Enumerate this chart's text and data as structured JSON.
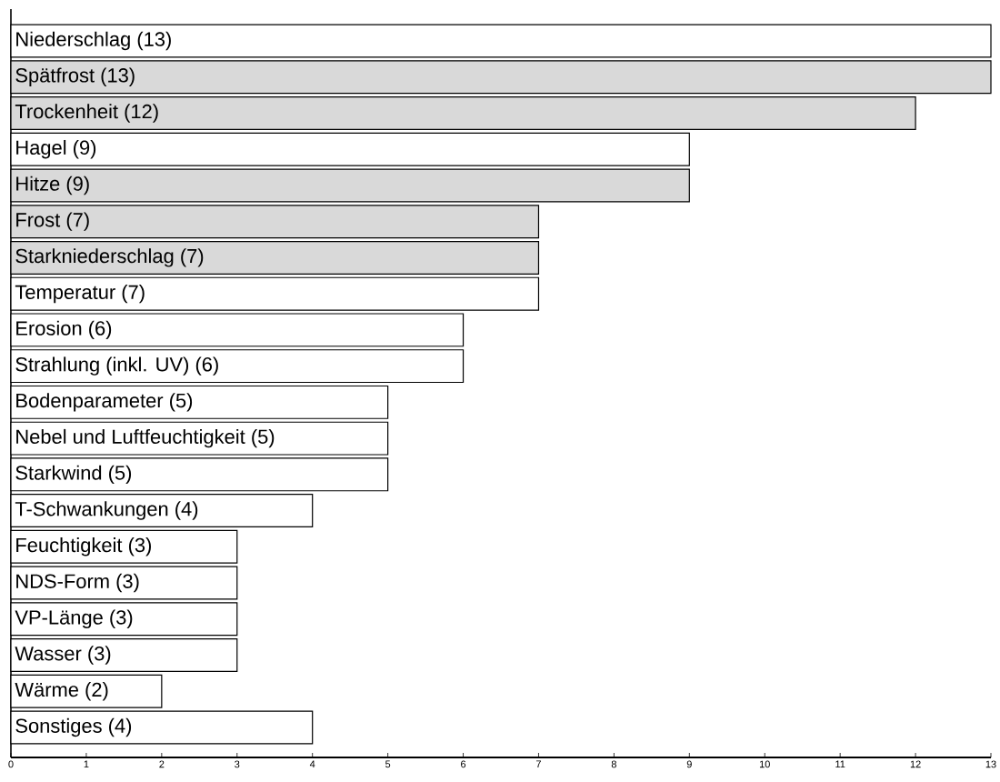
{
  "chart_data": {
    "type": "bar",
    "orientation": "horizontal",
    "categories": [
      "Niederschlag (13)",
      "Spätfrost (13)",
      "Trockenheit (12)",
      "Hagel (9)",
      "Hitze (9)",
      "Frost (7)",
      "Starkniederschlag (7)",
      "Temperatur (7)",
      "Erosion (6)",
      "Strahlung (inkl. UV) (6)",
      "Bodenparameter (5)",
      "Nebel und Luftfeuchtigkeit (5)",
      "Starkwind (5)",
      "T-Schwankungen (4)",
      "Feuchtigkeit (3)",
      "NDS-Form (3)",
      "VP-Länge (3)",
      "Wasser (3)",
      "Wärme (2)",
      "Sonstiges (4)"
    ],
    "values": [
      13,
      13,
      12,
      9,
      9,
      7,
      7,
      7,
      6,
      6,
      5,
      5,
      5,
      4,
      3,
      3,
      3,
      3,
      2,
      4
    ],
    "colors": [
      "#ffffff",
      "#d9d9d9",
      "#d9d9d9",
      "#ffffff",
      "#d9d9d9",
      "#d9d9d9",
      "#d9d9d9",
      "#ffffff",
      "#ffffff",
      "#ffffff",
      "#ffffff",
      "#ffffff",
      "#ffffff",
      "#ffffff",
      "#ffffff",
      "#ffffff",
      "#ffffff",
      "#ffffff",
      "#ffffff",
      "#ffffff"
    ],
    "xlim": [
      0,
      13
    ],
    "xticks": [
      0,
      1,
      2,
      3,
      4,
      5,
      6,
      7,
      8,
      9,
      10,
      11,
      12,
      13
    ]
  }
}
